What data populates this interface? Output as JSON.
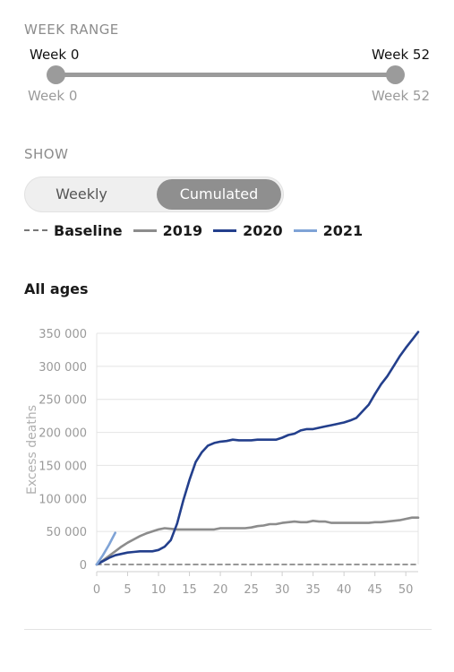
{
  "controls": {
    "week_range_label": "WEEK RANGE",
    "range_start_value": "Week 0",
    "range_end_value": "Week 52",
    "range_min_label": "Week 0",
    "range_max_label": "Week 52",
    "range_start_fraction": 0,
    "range_end_fraction": 1,
    "show_label": "SHOW",
    "toggle_options": [
      "Weekly",
      "Cumulated"
    ],
    "toggle_selected": "Cumulated"
  },
  "colors": {
    "baseline": "#777777",
    "2019": "#8c8c8c",
    "2020": "#233f8c",
    "2021": "#7fa3d6",
    "grid": "#e4e4e4",
    "tick_text": "#9a9a9a"
  },
  "chart_data": {
    "type": "line",
    "title": "All ages",
    "xlabel": "",
    "ylabel": "Excess deaths",
    "xlim": [
      0,
      52
    ],
    "ylim": [
      0,
      350000
    ],
    "xticks": [
      0,
      5,
      10,
      15,
      20,
      25,
      30,
      35,
      40,
      45,
      50
    ],
    "yticks": [
      0,
      50000,
      100000,
      150000,
      200000,
      250000,
      300000,
      350000
    ],
    "ytick_labels": [
      "0",
      "50 000",
      "100 000",
      "150 000",
      "200 000",
      "250 000",
      "300 000",
      "350 000"
    ],
    "grid": "horizontal",
    "legend_position": "top",
    "series": [
      {
        "name": "Baseline",
        "style": "dashed",
        "x": [
          0,
          52
        ],
        "values": [
          0,
          0
        ]
      },
      {
        "name": "2019",
        "style": "solid",
        "x": [
          0,
          1,
          2,
          3,
          4,
          5,
          6,
          7,
          8,
          9,
          10,
          11,
          12,
          13,
          14,
          15,
          16,
          17,
          18,
          19,
          20,
          21,
          22,
          23,
          24,
          25,
          26,
          27,
          28,
          29,
          30,
          31,
          32,
          33,
          34,
          35,
          36,
          37,
          38,
          39,
          40,
          41,
          42,
          43,
          44,
          45,
          46,
          47,
          48,
          49,
          50,
          51,
          52
        ],
        "values": [
          0,
          6000,
          13000,
          20000,
          27000,
          33000,
          38000,
          43000,
          47000,
          50000,
          53000,
          55000,
          54000,
          53000,
          53000,
          53000,
          53000,
          53000,
          53000,
          53000,
          55000,
          55000,
          55000,
          55000,
          55000,
          56000,
          58000,
          59000,
          61000,
          61000,
          63000,
          64000,
          65000,
          64000,
          64000,
          66000,
          65000,
          65000,
          63000,
          63000,
          63000,
          63000,
          63000,
          63000,
          63000,
          64000,
          64000,
          65000,
          66000,
          67000,
          69000,
          71000,
          71000
        ]
      },
      {
        "name": "2020",
        "style": "solid",
        "x": [
          0,
          1,
          2,
          3,
          4,
          5,
          6,
          7,
          8,
          9,
          10,
          11,
          12,
          13,
          14,
          15,
          16,
          17,
          18,
          19,
          20,
          21,
          22,
          23,
          24,
          25,
          26,
          27,
          28,
          29,
          30,
          31,
          32,
          33,
          34,
          35,
          36,
          37,
          38,
          39,
          40,
          41,
          42,
          43,
          44,
          45,
          46,
          47,
          48,
          49,
          50,
          51,
          52
        ],
        "values": [
          0,
          5000,
          10000,
          14000,
          16000,
          18000,
          19000,
          20000,
          20000,
          20000,
          22000,
          27000,
          37000,
          62000,
          97000,
          128000,
          155000,
          170000,
          180000,
          184000,
          186000,
          187000,
          189000,
          188000,
          188000,
          188000,
          189000,
          189000,
          189000,
          189000,
          192000,
          196000,
          198000,
          203000,
          205000,
          205000,
          207000,
          209000,
          211000,
          213000,
          215000,
          218000,
          222000,
          232000,
          242000,
          258000,
          273000,
          285000,
          300000,
          315000,
          328000,
          340000,
          352000
        ]
      },
      {
        "name": "2021",
        "style": "solid",
        "x": [
          0,
          1,
          2,
          3
        ],
        "values": [
          0,
          14000,
          30000,
          48000
        ]
      }
    ]
  }
}
